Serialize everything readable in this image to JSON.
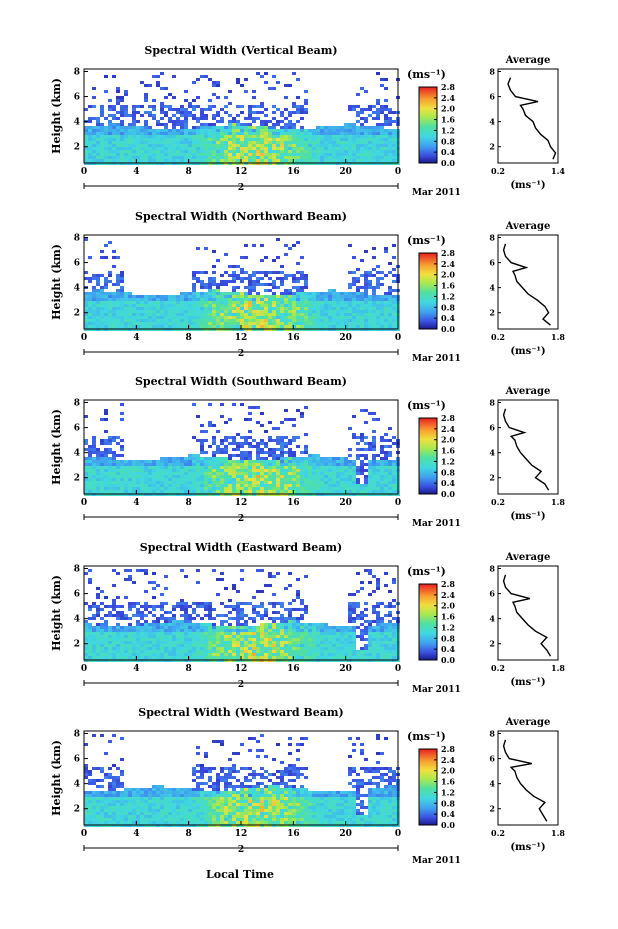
{
  "figure": {
    "date_label": "Mar 2011",
    "xlabel_bottom": "Local Time",
    "day_label": "2"
  },
  "chart_data": [
    {
      "type": "heatmap",
      "title": "Spectral Width (Vertical Beam)",
      "ylabel": "Height (km)",
      "xticks": [
        "0",
        "4",
        "8",
        "12",
        "16",
        "20",
        "0"
      ],
      "yticks": [
        "2",
        "4",
        "6",
        "8"
      ],
      "colorbar": {
        "label": "(ms⁻¹)",
        "ticks": [
          "0.0",
          "0.4",
          "0.8",
          "1.2",
          "1.6",
          "2.0",
          "2.4",
          "2.8"
        ]
      },
      "xlim_hours": [
        0,
        24
      ],
      "ylim_km": [
        0.7,
        8.2
      ],
      "clim": [
        0.0,
        2.8
      ],
      "average_profile": {
        "title": "Average",
        "xlabel": "(ms⁻¹)",
        "xticks": [
          "0.2",
          "1.4"
        ],
        "xlim": [
          0.2,
          1.4
        ],
        "yticks": [
          "2",
          "4",
          "6",
          "8"
        ],
        "height_km": [
          1.0,
          1.5,
          2.0,
          2.5,
          3.0,
          3.5,
          4.0,
          4.5,
          5.0,
          5.3,
          5.6,
          6.0,
          6.5,
          7.0,
          7.5
        ],
        "width": [
          1.3,
          1.35,
          1.25,
          1.2,
          1.05,
          0.95,
          0.9,
          0.75,
          0.7,
          0.65,
          1.0,
          0.55,
          0.45,
          0.4,
          0.45
        ]
      }
    },
    {
      "type": "heatmap",
      "title": "Spectral Width (Northward Beam)",
      "ylabel": "Height (km)",
      "xticks": [
        "0",
        "4",
        "8",
        "12",
        "16",
        "20",
        "0"
      ],
      "yticks": [
        "2",
        "4",
        "6",
        "8"
      ],
      "colorbar": {
        "label": "(ms⁻¹)",
        "ticks": [
          "0.0",
          "0.4",
          "0.8",
          "1.2",
          "1.6",
          "2.0",
          "2.4",
          "2.8"
        ]
      },
      "xlim_hours": [
        0,
        24
      ],
      "ylim_km": [
        0.7,
        8.2
      ],
      "clim": [
        0.0,
        2.8
      ],
      "average_profile": {
        "title": "Average",
        "xlabel": "(ms⁻¹)",
        "xticks": [
          "0.2",
          "1.8"
        ],
        "xlim": [
          0.2,
          1.8
        ],
        "yticks": [
          "2",
          "4",
          "6",
          "8"
        ],
        "height_km": [
          1.0,
          1.5,
          2.0,
          2.5,
          3.0,
          3.5,
          4.0,
          4.5,
          5.0,
          5.3,
          5.6,
          6.0,
          6.5,
          7.0,
          7.5
        ],
        "width": [
          1.6,
          1.4,
          1.55,
          1.45,
          1.25,
          1.0,
          0.85,
          0.7,
          0.65,
          0.6,
          0.95,
          0.55,
          0.4,
          0.35,
          0.4
        ]
      }
    },
    {
      "type": "heatmap",
      "title": "Spectral Width (Southward Beam)",
      "ylabel": "Height (km)",
      "xticks": [
        "0",
        "4",
        "8",
        "12",
        "16",
        "20",
        "0"
      ],
      "yticks": [
        "2",
        "4",
        "6",
        "8"
      ],
      "colorbar": {
        "label": "(ms⁻¹)",
        "ticks": [
          "0.0",
          "0.4",
          "0.8",
          "1.2",
          "1.6",
          "2.0",
          "2.4",
          "2.8"
        ]
      },
      "xlim_hours": [
        0,
        24
      ],
      "ylim_km": [
        0.7,
        8.2
      ],
      "clim": [
        0.0,
        2.8
      ],
      "average_profile": {
        "title": "Average",
        "xlabel": "(ms⁻¹)",
        "xticks": [
          "0.2",
          "1.8"
        ],
        "xlim": [
          0.2,
          1.8
        ],
        "yticks": [
          "2",
          "4",
          "6",
          "8"
        ],
        "height_km": [
          1.0,
          1.5,
          2.0,
          2.5,
          3.0,
          3.5,
          4.0,
          4.5,
          5.0,
          5.3,
          5.6,
          6.0,
          6.5,
          7.0,
          7.5
        ],
        "width": [
          1.55,
          1.45,
          1.2,
          1.35,
          1.1,
          0.95,
          0.8,
          0.7,
          0.65,
          0.55,
          0.9,
          0.5,
          0.4,
          0.35,
          0.4
        ]
      }
    },
    {
      "type": "heatmap",
      "title": "Spectral Width (Eastward Beam)",
      "ylabel": "Height (km)",
      "xticks": [
        "0",
        "4",
        "8",
        "12",
        "16",
        "20",
        "0"
      ],
      "yticks": [
        "2",
        "4",
        "6",
        "8"
      ],
      "colorbar": {
        "label": "(ms⁻¹)",
        "ticks": [
          "0.0",
          "0.4",
          "0.8",
          "1.2",
          "1.6",
          "2.0",
          "2.4",
          "2.8"
        ]
      },
      "xlim_hours": [
        0,
        24
      ],
      "ylim_km": [
        0.7,
        8.2
      ],
      "clim": [
        0.0,
        2.8
      ],
      "average_profile": {
        "title": "Average",
        "xlabel": "(ms⁻¹)",
        "xticks": [
          "0.2",
          "1.8"
        ],
        "xlim": [
          0.2,
          1.8
        ],
        "yticks": [
          "2",
          "4",
          "6",
          "8"
        ],
        "height_km": [
          1.0,
          1.5,
          2.0,
          2.5,
          3.0,
          3.5,
          4.0,
          4.5,
          5.0,
          5.3,
          5.6,
          6.0,
          6.5,
          7.0,
          7.5
        ],
        "width": [
          1.6,
          1.5,
          1.35,
          1.5,
          1.2,
          1.0,
          0.85,
          0.7,
          0.65,
          0.6,
          1.05,
          0.55,
          0.4,
          0.35,
          0.4
        ]
      }
    },
    {
      "type": "heatmap",
      "title": "Spectral Width (Westward Beam)",
      "ylabel": "Height (km)",
      "xticks": [
        "0",
        "4",
        "8",
        "12",
        "16",
        "20",
        "0"
      ],
      "yticks": [
        "2",
        "4",
        "6",
        "8"
      ],
      "colorbar": {
        "label": "(ms⁻¹)",
        "ticks": [
          "0.0",
          "0.4",
          "0.8",
          "1.2",
          "1.6",
          "2.0",
          "2.4",
          "2.8"
        ]
      },
      "xlim_hours": [
        0,
        24
      ],
      "ylim_km": [
        0.7,
        8.2
      ],
      "clim": [
        0.0,
        2.8
      ],
      "average_profile": {
        "title": "Average",
        "xlabel": "(ms⁻¹)",
        "xticks": [
          "0.2",
          "1.8"
        ],
        "xlim": [
          0.2,
          1.8
        ],
        "yticks": [
          "2",
          "4",
          "6",
          "8"
        ],
        "height_km": [
          1.0,
          1.5,
          2.0,
          2.5,
          3.0,
          3.5,
          4.0,
          4.5,
          5.0,
          5.3,
          5.6,
          6.0,
          6.5,
          7.0,
          7.5
        ],
        "width": [
          1.5,
          1.4,
          1.3,
          1.45,
          1.15,
          0.95,
          0.8,
          0.7,
          0.65,
          0.55,
          1.1,
          0.5,
          0.4,
          0.35,
          0.4
        ]
      }
    }
  ]
}
